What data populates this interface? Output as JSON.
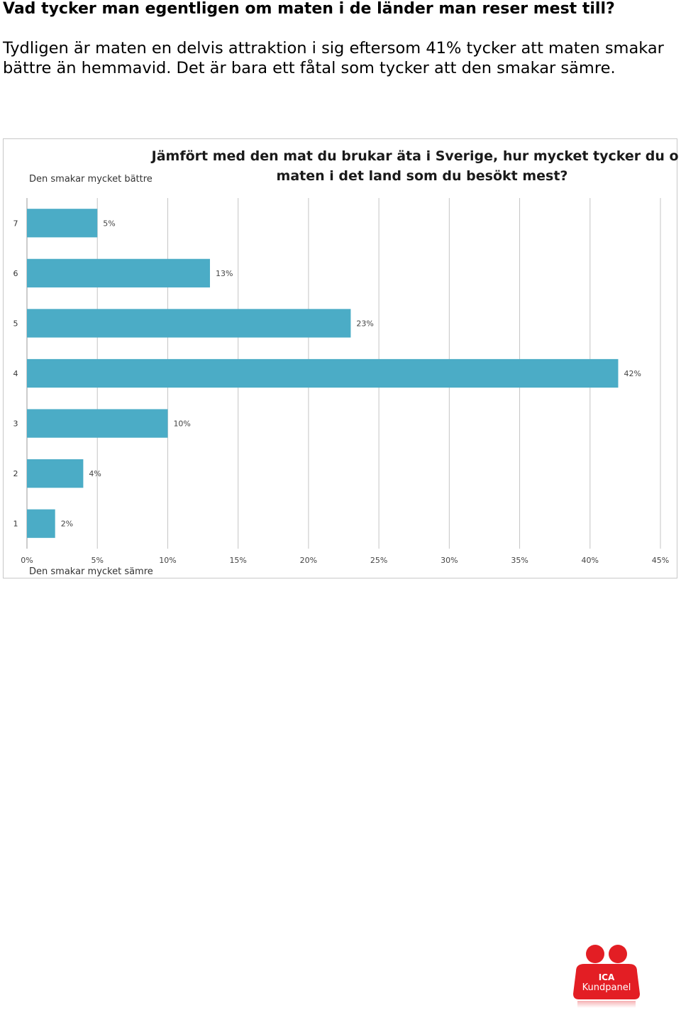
{
  "heading": "Vad tycker man egentligen om maten i de länder man reser mest till?",
  "paragraph": "Tydligen är maten en delvis attraktion i sig eftersom 41% tycker att maten smakar bättre än hemmavid. Det är bara ett fåtal som tycker att den smakar sämre.",
  "chart_data": {
    "type": "bar",
    "orientation": "horizontal",
    "title_line1": "Jämfört med den mat du brukar äta i Sverige, hur mycket tycker du om",
    "title_line2": "maten i det land som du besökt mest?",
    "top_label": "Den smakar mycket bättre",
    "bottom_label": "Den smakar mycket sämre",
    "categories": [
      "7",
      "6",
      "5",
      "4",
      "3",
      "2",
      "1"
    ],
    "values": [
      5,
      13,
      23,
      42,
      10,
      4,
      2
    ],
    "value_labels": [
      "5%",
      "13%",
      "23%",
      "42%",
      "10%",
      "4%",
      "2%"
    ],
    "xlim": [
      0,
      45
    ],
    "x_ticks": [
      "0%",
      "5%",
      "10%",
      "15%",
      "20%",
      "25%",
      "30%",
      "35%",
      "40%",
      "45%"
    ],
    "grid": true,
    "bar_color": "#4bacc6"
  },
  "logo": {
    "line1": "ICA",
    "line2": "Kundpanel",
    "color": "#e31e24"
  }
}
